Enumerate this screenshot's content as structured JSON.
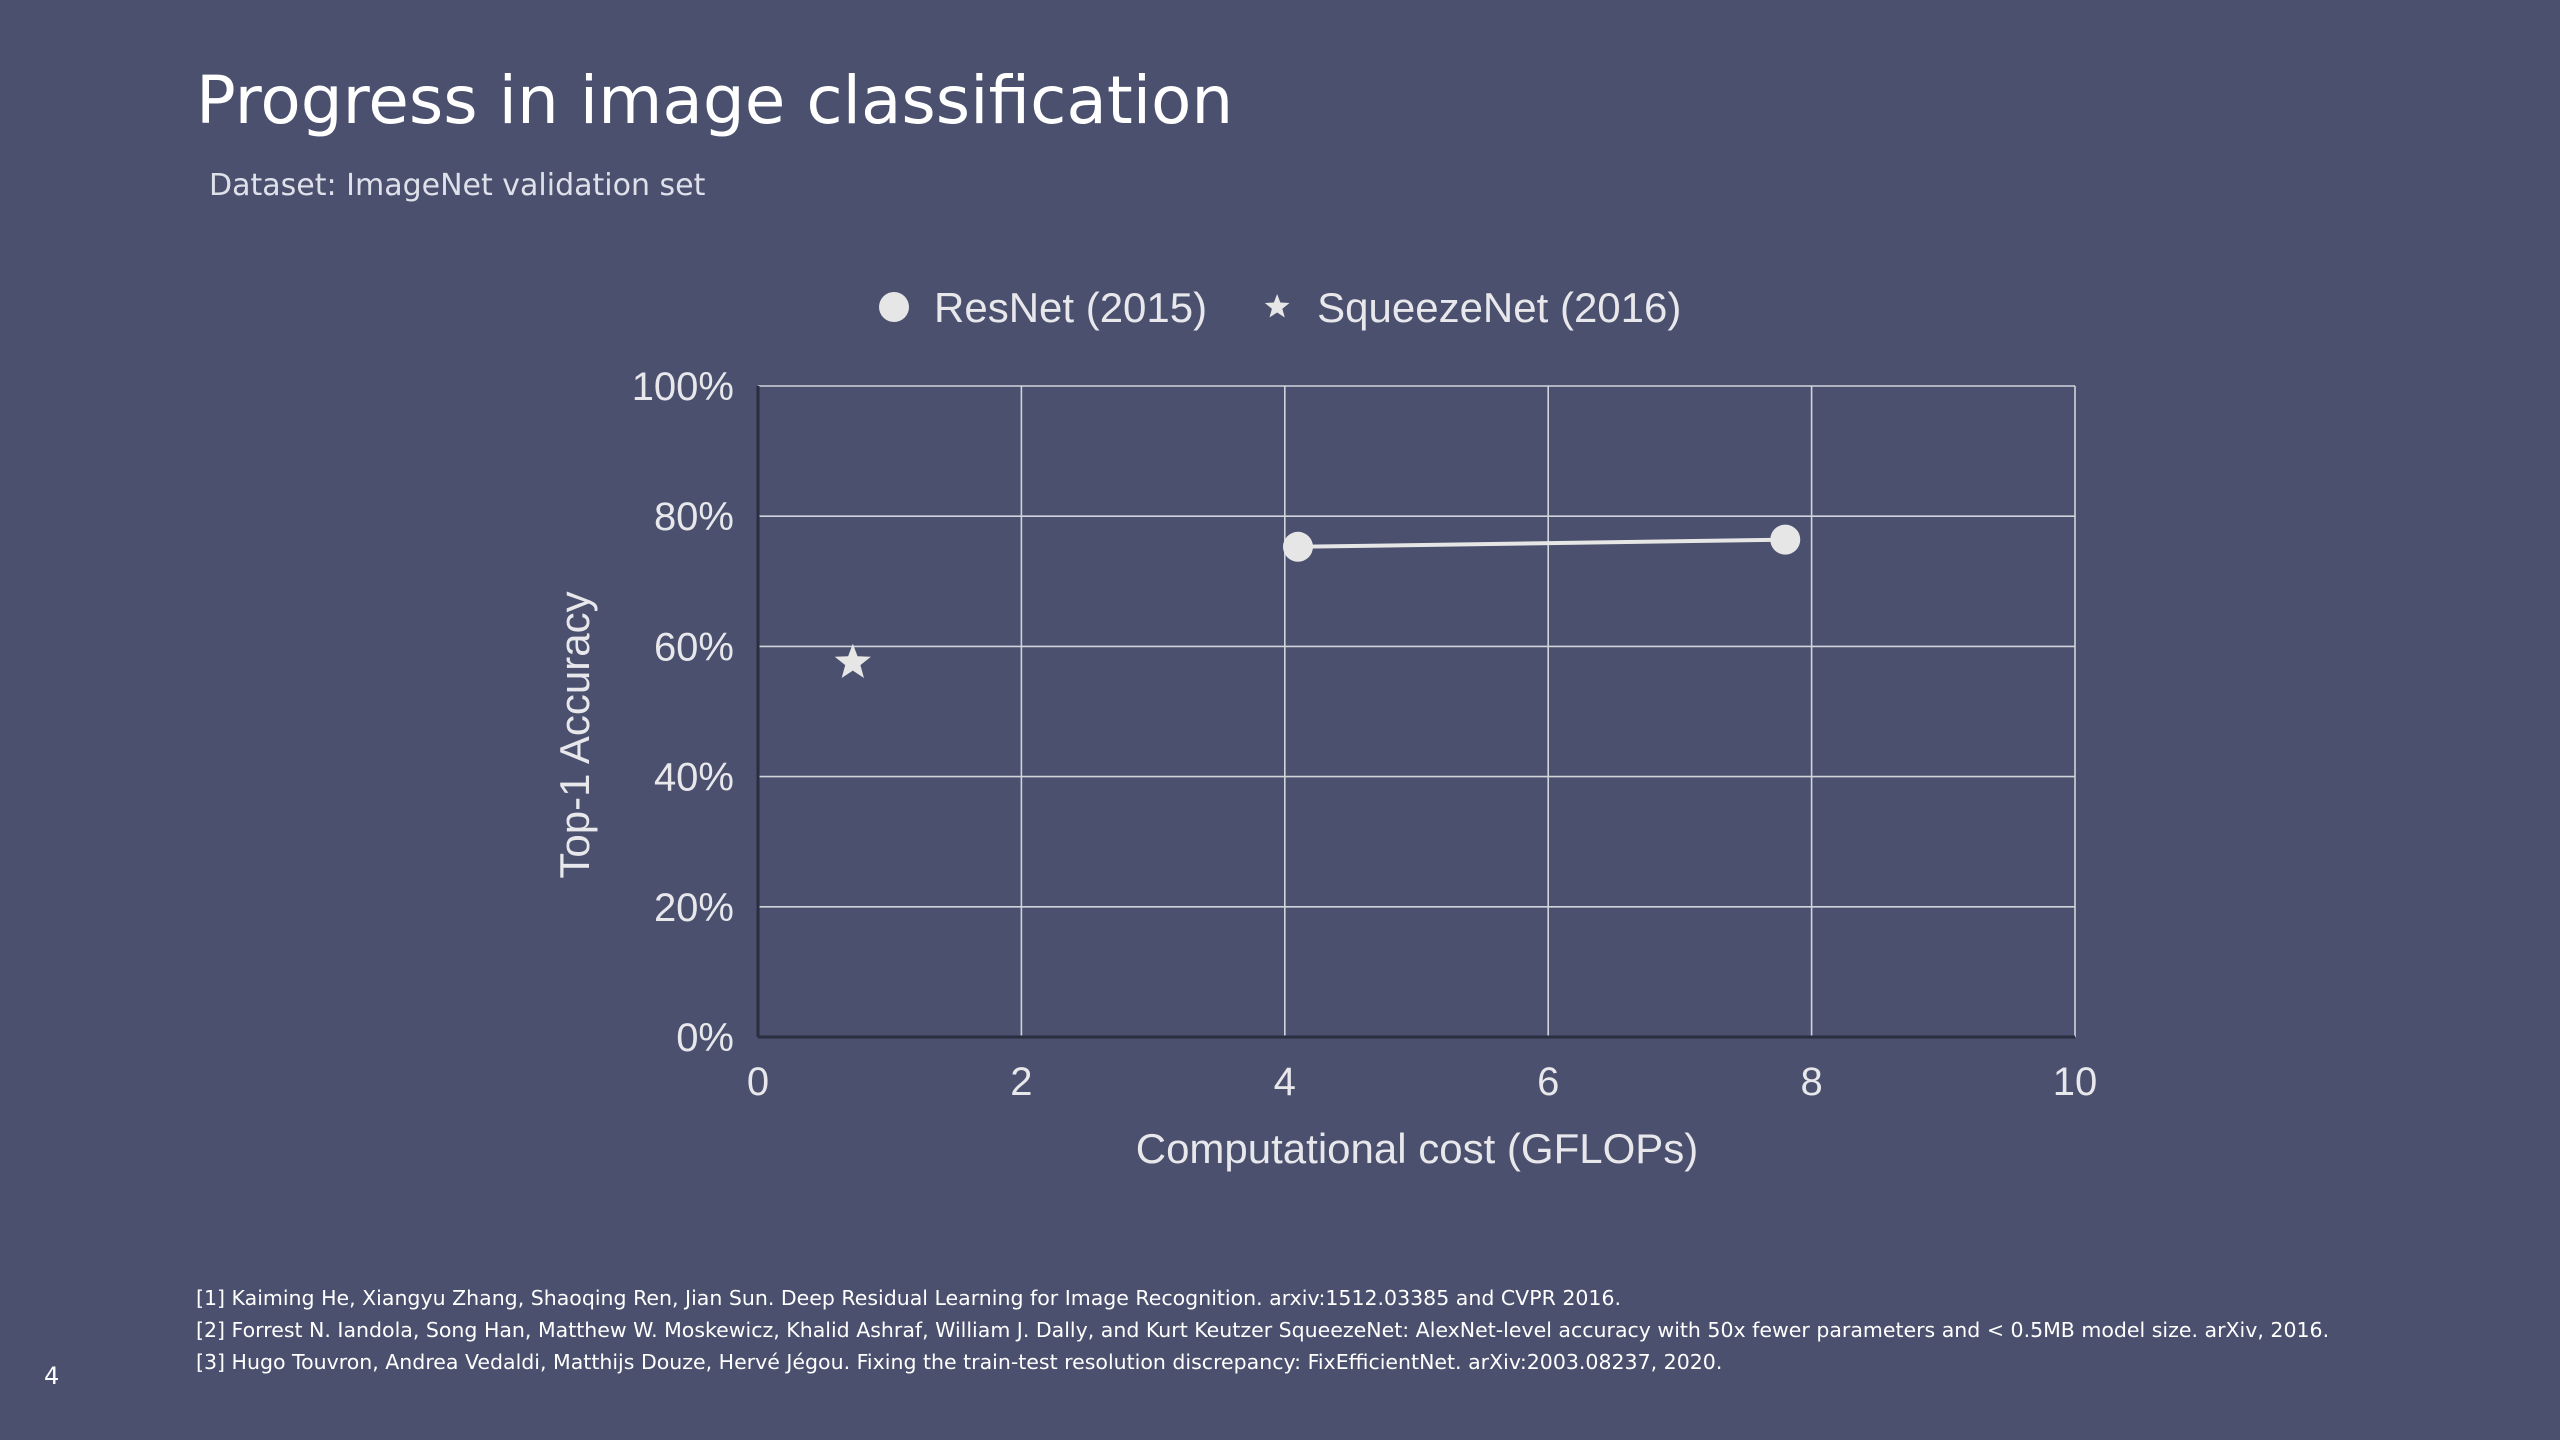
{
  "slide": {
    "title": "Progress in image classification",
    "subtitle": "Dataset: ImageNet validation set",
    "page_number": "4",
    "references": [
      "[1] Kaiming He, Xiangyu Zhang, Shaoqing Ren, Jian Sun. Deep Residual Learning for Image Recognition. arxiv:1512.03385 and CVPR 2016.",
      "[2] Forrest N. Iandola, Song Han, Matthew W. Moskewicz, Khalid Ashraf, William J. Dally, and Kurt Keutzer SqueezeNet: AlexNet-level accuracy with 50x fewer parameters and < 0.5MB model size. arXiv, 2016.",
      "[3] Hugo Touvron, Andrea Vedaldi, Matthijs Douze, Hervé Jégou. Fixing the train-test resolution discrepancy: FixEfficientNet. arXiv:2003.08237, 2020."
    ]
  },
  "chart_data": {
    "type": "scatter",
    "title": "",
    "xlabel": "Computational cost (GFLOPs)",
    "ylabel": "Top-1 Accuracy",
    "xlim": [
      0,
      10
    ],
    "ylim": [
      0,
      100
    ],
    "x_ticks": [
      0,
      2,
      4,
      6,
      8,
      10
    ],
    "x_tick_labels": [
      "0",
      "2",
      "4",
      "6",
      "8",
      "10"
    ],
    "y_ticks": [
      0,
      20,
      40,
      60,
      80,
      100
    ],
    "y_tick_labels": [
      "0%",
      "20%",
      "40%",
      "60%",
      "80%",
      "100%"
    ],
    "grid": true,
    "legend_position": "top-center",
    "series": [
      {
        "name": "ResNet (2015)",
        "marker": "circle",
        "connected": true,
        "color": "#e6e6e6",
        "points": [
          {
            "x": 4.1,
            "y": 75.3
          },
          {
            "x": 7.8,
            "y": 76.4
          }
        ]
      },
      {
        "name": "SqueezeNet (2016)",
        "marker": "star",
        "connected": false,
        "color": "#e6e6e6",
        "points": [
          {
            "x": 0.72,
            "y": 57.5
          }
        ]
      }
    ]
  }
}
